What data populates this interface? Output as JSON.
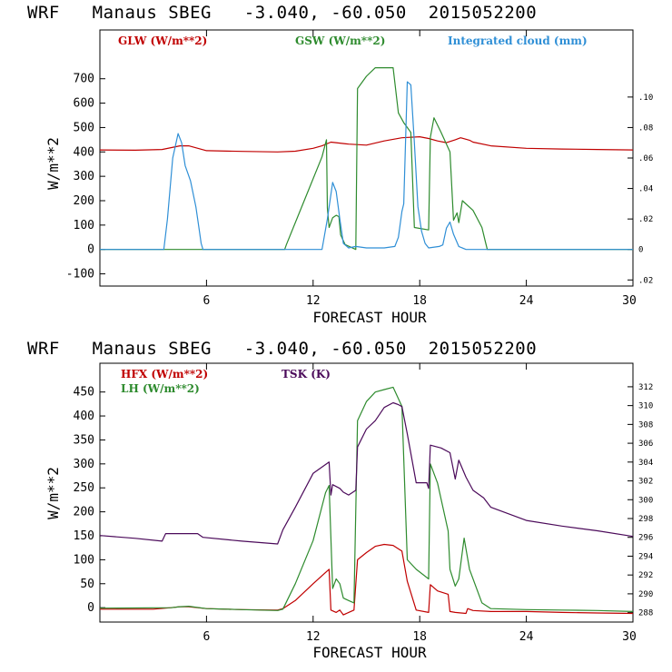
{
  "chart_data": [
    {
      "type": "line",
      "title": "WRF   Manaus SBEG   -3.040, -60.050  2015052200",
      "xlabel": "FORECAST HOUR",
      "ylabel": "W/m**2",
      "xlim": [
        0,
        30
      ],
      "ylim": [
        -150,
        900
      ],
      "y2lim": [
        -0.024,
        0.144
      ],
      "xticks": [
        6,
        12,
        18,
        24,
        30
      ],
      "yticks": [
        -100,
        0,
        100,
        200,
        300,
        400,
        500,
        600,
        700
      ],
      "ytick_labels": [
        "-100",
        "0",
        "100",
        "200",
        "300",
        "400",
        "500",
        "600",
        "700"
      ],
      "y2ticks": [
        -0.02,
        0,
        0.02,
        0.04,
        0.06,
        0.08,
        0.1
      ],
      "y2tick_labels": [
        ".02",
        "0",
        ".02",
        ".04",
        ".06",
        ".08",
        ".10"
      ],
      "series": [
        {
          "name": "GLW (W/m**2)",
          "color": "#c00000",
          "axis": "left",
          "x": [
            0,
            2,
            3.5,
            4.5,
            5,
            6,
            8,
            10,
            11,
            12,
            12.5,
            13,
            14,
            15,
            16,
            17,
            18,
            18.5,
            19,
            19.5,
            20,
            20.3,
            20.8,
            21,
            22,
            24,
            26,
            28,
            30
          ],
          "y": [
            408,
            407,
            410,
            425,
            425,
            405,
            402,
            400,
            403,
            415,
            425,
            440,
            432,
            428,
            445,
            458,
            462,
            455,
            445,
            438,
            450,
            458,
            448,
            440,
            425,
            415,
            412,
            410,
            408
          ]
        },
        {
          "name": "GSW (W/m**2)",
          "color": "#2e8b2e",
          "axis": "left",
          "x": [
            0,
            10.4,
            10.5,
            11.5,
            12.5,
            12.75,
            12.8,
            12.9,
            13.1,
            13.3,
            13.45,
            13.55,
            13.8,
            14.4,
            14.5,
            15,
            15.5,
            16.5,
            16.8,
            17.1,
            17.3,
            17.5,
            17.7,
            18.5,
            18.6,
            18.8,
            19.2,
            19.7,
            19.9,
            20.1,
            20.2,
            20.4,
            21,
            21.5,
            21.7,
            21.8,
            30
          ],
          "y": [
            0,
            0,
            20,
            200,
            380,
            450,
            170,
            90,
            130,
            140,
            135,
            60,
            20,
            0,
            660,
            710,
            745,
            745,
            560,
            520,
            500,
            480,
            90,
            80,
            460,
            540,
            480,
            400,
            120,
            150,
            110,
            200,
            160,
            90,
            30,
            0,
            0
          ]
        },
        {
          "name": "Integrated cloud (mm)",
          "color": "#2f8fd6",
          "axis": "right",
          "x": [
            0,
            3.6,
            3.8,
            4.1,
            4.4,
            4.6,
            4.8,
            5.1,
            5.4,
            5.6,
            5.7,
            5.8,
            12.5,
            12.8,
            13.1,
            13.3,
            13.5,
            13.7,
            14,
            14.4,
            15,
            16,
            16.6,
            16.8,
            17,
            17.1,
            17.3,
            17.5,
            17.7,
            17.9,
            18.1,
            18.3,
            18.5,
            19.1,
            19.3,
            19.5,
            19.7,
            19.9,
            20.2,
            20.6,
            30
          ],
          "y": [
            0,
            0,
            0.02,
            0.06,
            0.076,
            0.07,
            0.055,
            0.045,
            0.028,
            0.012,
            0.004,
            0,
            0,
            0.02,
            0.044,
            0.038,
            0.02,
            0.004,
            0.001,
            0.002,
            0.001,
            0.001,
            0.002,
            0.008,
            0.025,
            0.03,
            0.11,
            0.108,
            0.07,
            0.028,
            0.012,
            0.004,
            0.001,
            0.002,
            0.003,
            0.014,
            0.018,
            0.01,
            0.002,
            0,
            0
          ]
        }
      ]
    },
    {
      "type": "line",
      "title": "WRF   Manaus SBEG   -3.040, -60.050  2015052200",
      "xlabel": "FORECAST HOUR",
      "ylabel": "W/m**2",
      "xlim": [
        0,
        30
      ],
      "ylim": [
        -30,
        510
      ],
      "y2lim": [
        287,
        314.5
      ],
      "xticks": [
        6,
        12,
        18,
        24,
        30
      ],
      "yticks": [
        0,
        50,
        100,
        150,
        200,
        250,
        300,
        350,
        400,
        450
      ],
      "ytick_labels": [
        "0",
        "50",
        "100",
        "150",
        "200",
        "250",
        "300",
        "350",
        "400",
        "450"
      ],
      "y2ticks": [
        288,
        290,
        292,
        294,
        296,
        298,
        300,
        302,
        304,
        306,
        308,
        310,
        312
      ],
      "y2tick_labels": [
        "288",
        "290",
        "292",
        "294",
        "296",
        "298",
        "300",
        "302",
        "304",
        "306",
        "308",
        "310",
        "312"
      ],
      "series": [
        {
          "name": "HFX (W/m**2)",
          "color": "#c00000",
          "axis": "left",
          "x": [
            0,
            3,
            4,
            4.5,
            5,
            5.5,
            6,
            8,
            10,
            10.3,
            11,
            12,
            12.6,
            12.9,
            13,
            13.3,
            13.5,
            13.7,
            14,
            14.3,
            14.5,
            15,
            15.5,
            16,
            16.5,
            17,
            17.3,
            17.8,
            18.5,
            18.6,
            19,
            19.6,
            19.7,
            20,
            20.6,
            20.7,
            21,
            22,
            24,
            26,
            28,
            30
          ],
          "y": [
            -3,
            -3,
            0,
            2,
            2,
            0,
            -2,
            -4,
            -5,
            -2,
            15,
            50,
            70,
            80,
            -5,
            -10,
            -5,
            -15,
            -10,
            -5,
            100,
            115,
            128,
            132,
            130,
            118,
            55,
            -5,
            -10,
            48,
            35,
            28,
            -8,
            -10,
            -12,
            -2,
            -6,
            -8,
            -8,
            -10,
            -11,
            -12
          ]
        },
        {
          "name": "LH (W/m**2)",
          "color": "#2e8b2e",
          "axis": "left",
          "x": [
            0,
            4,
            4.5,
            5,
            6,
            8,
            10,
            10.3,
            11,
            12,
            12.7,
            12.9,
            13.1,
            13.3,
            13.5,
            13.7,
            14,
            14.3,
            14.5,
            15,
            15.5,
            16,
            16.5,
            17,
            17.3,
            17.8,
            18.5,
            18.6,
            19,
            19.6,
            19.7,
            20,
            20.2,
            20.5,
            20.8,
            21.5,
            22,
            24,
            26,
            28,
            30
          ],
          "y": [
            -1,
            0,
            2,
            3,
            -2,
            -4,
            -6,
            -3,
            50,
            140,
            240,
            255,
            40,
            60,
            50,
            20,
            15,
            10,
            390,
            430,
            450,
            455,
            460,
            420,
            100,
            80,
            60,
            300,
            260,
            160,
            80,
            45,
            60,
            145,
            80,
            10,
            -2,
            -4,
            -5,
            -6,
            -8
          ]
        },
        {
          "name": "TSK (K)",
          "color": "#4b0a5a",
          "axis": "right",
          "x": [
            0,
            2,
            3.5,
            3.7,
            5.5,
            5.8,
            8,
            10,
            10.3,
            11,
            12,
            12.9,
            13,
            13.1,
            13.5,
            13.7,
            14,
            14.4,
            14.5,
            15,
            15.5,
            16,
            16.5,
            16.8,
            17,
            17.3,
            17.8,
            18.4,
            18.5,
            18.6,
            19.2,
            19.7,
            20,
            20.2,
            20.6,
            21,
            21.6,
            22,
            24,
            26,
            28,
            30
          ],
          "y": [
            296.2,
            295.9,
            295.6,
            296.4,
            296.4,
            296.0,
            295.6,
            295.3,
            296.8,
            299.2,
            302.8,
            304.0,
            300.5,
            301.6,
            301.2,
            300.8,
            300.5,
            301.0,
            305.6,
            307.5,
            308.4,
            309.8,
            310.3,
            310.1,
            309.9,
            307.0,
            301.8,
            301.8,
            301.2,
            305.8,
            305.5,
            305.0,
            302.2,
            304.2,
            302.4,
            301.0,
            300.2,
            299.2,
            297.8,
            297.2,
            296.7,
            296.1
          ]
        }
      ]
    }
  ]
}
